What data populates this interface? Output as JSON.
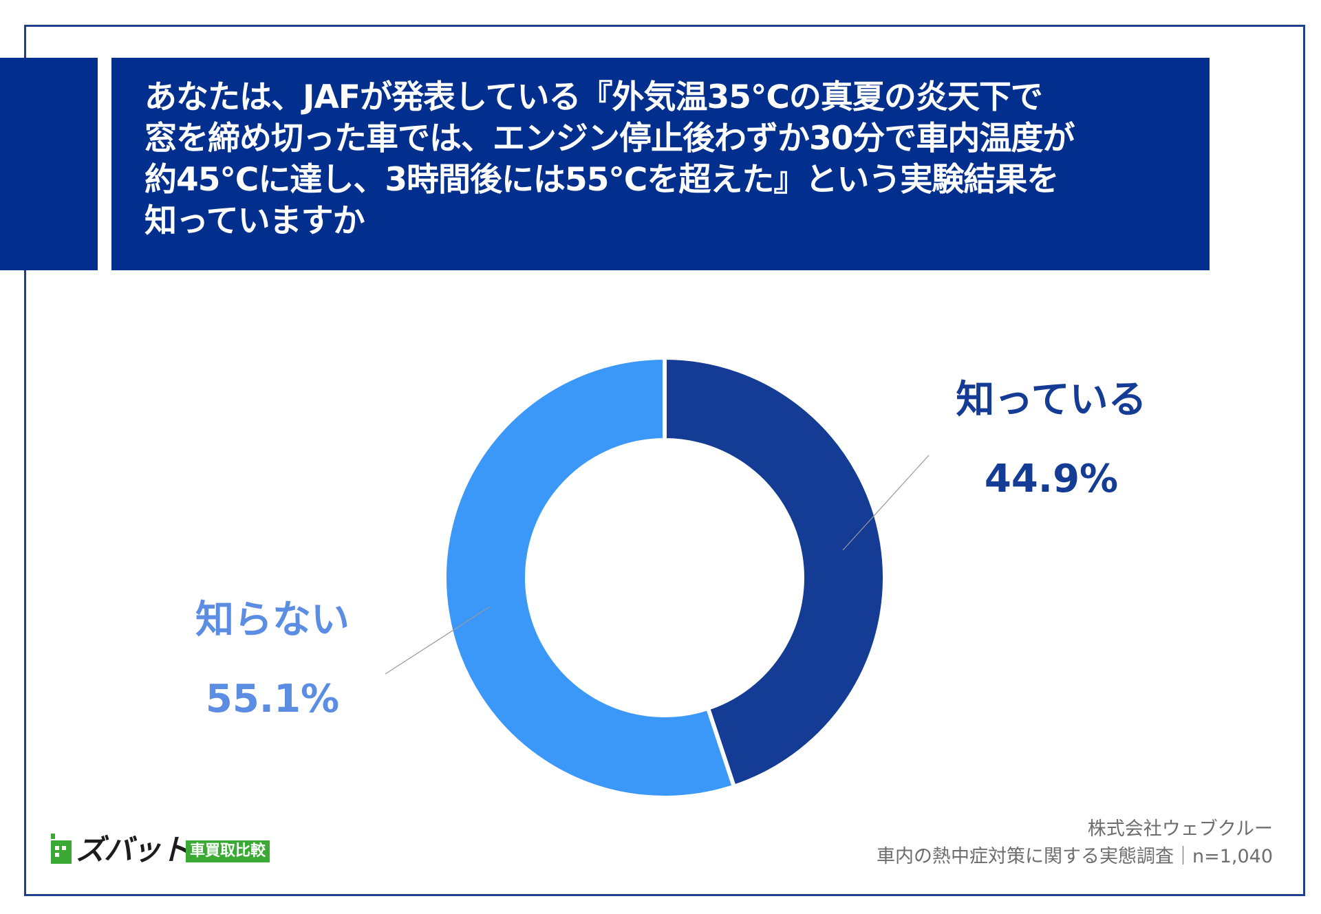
{
  "title": {
    "lines": [
      "あなたは、JAFが発表している『外気温35℃の真夏の炎天下で",
      "窓を締め切った車では、エンジン停止後わずか30分で車内温度が",
      "約45℃に達し、3時間後には55℃を超えた』という実験結果を",
      "知っていますか"
    ]
  },
  "chart_data": {
    "type": "pie",
    "donut": true,
    "title": "",
    "slices": [
      {
        "label": "知っている",
        "value": 44.9,
        "value_label": "44.9%",
        "color": "#143c94",
        "label_color": "#143c94"
      },
      {
        "label": "知らない",
        "value": 55.1,
        "value_label": "55.1%",
        "color": "#3b97f8",
        "label_color": "#5b8ee2"
      }
    ],
    "start": "top",
    "direction": "clockwise",
    "legend": "none"
  },
  "footer": {
    "company": "株式会社ウェブクルー",
    "survey": "車内の熱中症対策に関する実態調査｜n=1,040"
  },
  "logo": {
    "name": "ズバット",
    "tag": "車買取比較",
    "accent_color": "#3aaa35"
  },
  "colors": {
    "frame": "#1f3f8f",
    "title_bg": "#022f8e"
  }
}
